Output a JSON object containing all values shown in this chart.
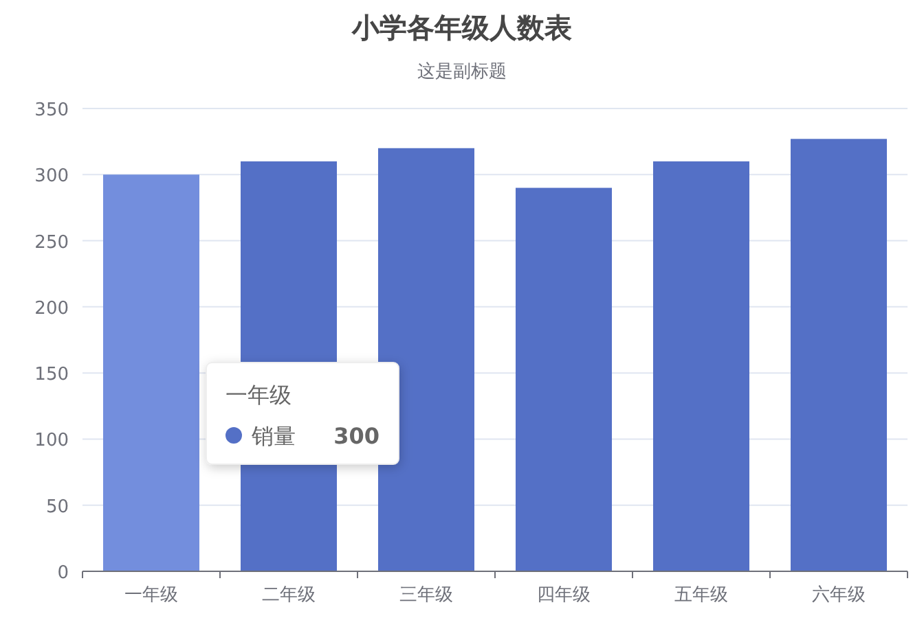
{
  "chart_data": {
    "type": "bar",
    "title": "小学各年级人数表",
    "subtitle": "这是副标题",
    "categories": [
      "一年级",
      "二年级",
      "三年级",
      "四年级",
      "五年级",
      "六年级"
    ],
    "series": [
      {
        "name": "销量",
        "color": "#5470c6",
        "colors": [
          "#738edd",
          "#5470c6",
          "#5470c6",
          "#5470c6",
          "#5470c6",
          "#5470c6"
        ],
        "values": [
          300,
          310,
          320,
          290,
          310,
          327
        ]
      }
    ],
    "annotations": [
      "一年级",
      "300"
    ],
    "ylim": [
      0,
      350
    ],
    "yticks": [
      0,
      50,
      100,
      150,
      200,
      250,
      300,
      350
    ],
    "grid": "y"
  }
}
